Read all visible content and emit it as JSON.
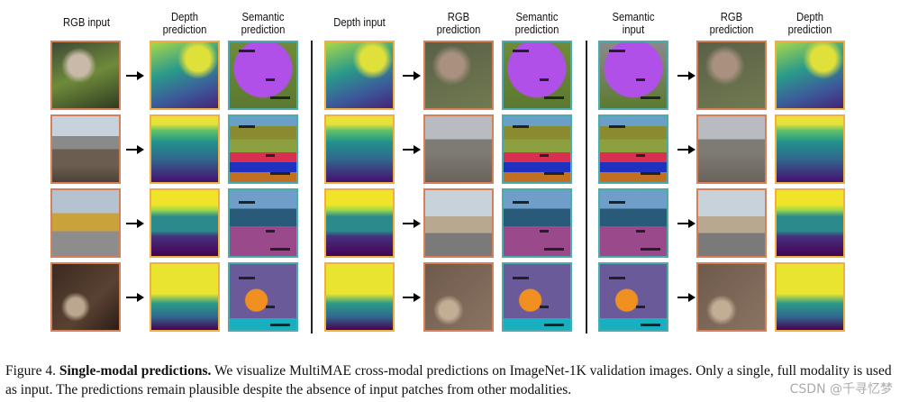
{
  "headers": {
    "rgb_input": "RGB input",
    "depth_prediction_1": "Depth\nprediction",
    "semantic_prediction_1": "Semantic\nprediction",
    "depth_input": "Depth input",
    "rgb_prediction_1": "RGB\nprediction",
    "semantic_prediction_2": "Semantic\nprediction",
    "semantic_input": "Semantic\ninput",
    "rgb_prediction_2": "RGB\nprediction",
    "depth_prediction_2": "Depth\nprediction"
  },
  "caption": {
    "figure_label": "Figure 4.",
    "title": "Single-modal predictions.",
    "text": " We visualize MultiMAE cross-modal predictions on ImageNet-1K validation images. Only a single, full modality is used as input. The predictions remain plausible despite the absence of input patches from other modalities."
  },
  "watermark": "CSDN @千寻忆梦",
  "colors": {
    "rgb_border": "#d6805a",
    "depth_border": "#f0b040",
    "semantic_border": "#4aacb0"
  }
}
